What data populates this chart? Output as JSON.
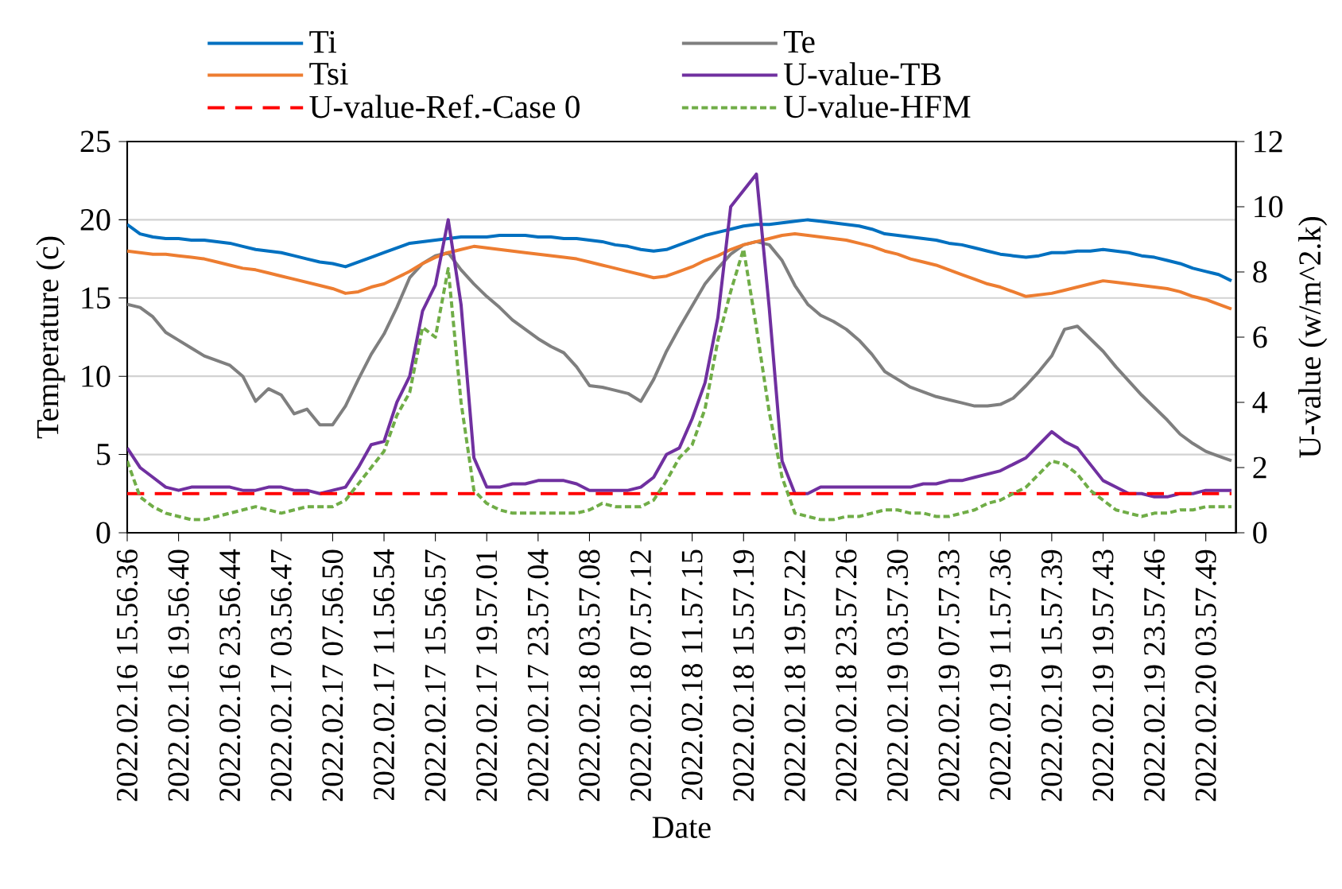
{
  "chart_data": {
    "type": "line",
    "xlabel": "Date",
    "ylabel": "Temperature (c)",
    "y2label": "U-value (w/m^2.k)",
    "ylim": [
      0,
      25
    ],
    "y2lim": [
      0,
      12
    ],
    "categories": [
      "2022.02.16 15.56.36",
      null,
      null,
      null,
      "2022.02.16 19.56.40",
      null,
      null,
      null,
      "2022.02.16 23.56.44",
      null,
      null,
      null,
      "2022.02.17 03.56.47",
      null,
      null,
      null,
      "2022.02.17 07.56.50",
      null,
      null,
      null,
      "2022.02.17 11.56.54",
      null,
      null,
      null,
      "2022.02.17 15.56.57",
      null,
      null,
      null,
      "2022.02.17 19.57.01",
      null,
      null,
      null,
      "2022.02.17 23.57.04",
      null,
      null,
      null,
      "2022.02.18 03.57.08",
      null,
      null,
      null,
      "2022.02.18 07.57.12",
      null,
      null,
      null,
      "2022.02.18 11.57.15",
      null,
      null,
      null,
      "2022.02.18 15.57.19",
      null,
      null,
      null,
      "2022.02.18 19.57.22",
      null,
      null,
      null,
      "2022.02.18 23.57.26",
      null,
      null,
      null,
      "2022.02.19 03.57.30",
      null,
      null,
      null,
      "2022.02.19 07.57.33",
      null,
      null,
      null,
      "2022.02.19 11.57.36",
      null,
      null,
      null,
      "2022.02.19 15.57.39",
      null,
      null,
      null,
      "2022.02.19 19.57.43",
      null,
      null,
      null,
      "2022.02.19 23.57.46",
      null,
      null,
      null,
      "2022.02.20 03.57.49",
      null,
      null
    ],
    "yticks": [
      0,
      5,
      10,
      15,
      20,
      25
    ],
    "y2ticks": [
      0,
      2,
      4,
      6,
      8,
      10,
      12
    ],
    "grid": "y",
    "legend": "top",
    "series": [
      {
        "name": "Ti",
        "color": "#0070c0",
        "line_style": "solid",
        "values": [
          19.7,
          19.1,
          18.9,
          18.8,
          18.8,
          18.7,
          18.7,
          18.6,
          18.5,
          18.3,
          18.1,
          18.0,
          17.9,
          17.7,
          17.5,
          17.3,
          17.2,
          17.0,
          17.3,
          17.6,
          17.9,
          18.2,
          18.5,
          18.6,
          18.7,
          18.8,
          18.9,
          18.9,
          18.9,
          19.0,
          19.0,
          19.0,
          18.9,
          18.9,
          18.8,
          18.8,
          18.7,
          18.6,
          18.4,
          18.3,
          18.1,
          18.0,
          18.1,
          18.4,
          18.7,
          19.0,
          19.2,
          19.4,
          19.6,
          19.7,
          19.7,
          19.8,
          19.9,
          20.0,
          19.9,
          19.8,
          19.7,
          19.6,
          19.4,
          19.1,
          19.0,
          18.9,
          18.8,
          18.7,
          18.5,
          18.4,
          18.2,
          18.0,
          17.8,
          17.7,
          17.6,
          17.7,
          17.9,
          17.9,
          18.0,
          18.0,
          18.1,
          18.0,
          17.9,
          17.7,
          17.6,
          17.4,
          17.2,
          16.9,
          16.7,
          16.5,
          16.1
        ]
      },
      {
        "name": "Te",
        "color": "#7f7f7f",
        "line_style": "solid",
        "values": [
          14.6,
          14.4,
          13.8,
          12.8,
          12.3,
          11.8,
          11.3,
          11.0,
          10.7,
          10.0,
          8.4,
          9.2,
          8.8,
          7.6,
          7.9,
          6.9,
          6.9,
          8.1,
          9.8,
          11.4,
          12.7,
          14.4,
          16.3,
          17.2,
          17.7,
          17.9,
          16.8,
          15.9,
          15.1,
          14.4,
          13.6,
          13.0,
          12.4,
          11.9,
          11.5,
          10.6,
          9.4,
          9.3,
          9.1,
          8.9,
          8.4,
          9.8,
          11.6,
          13.1,
          14.5,
          15.9,
          16.9,
          17.8,
          18.4,
          18.6,
          18.4,
          17.4,
          15.8,
          14.6,
          13.9,
          13.5,
          13.0,
          12.3,
          11.4,
          10.3,
          9.8,
          9.3,
          9.0,
          8.7,
          8.5,
          8.3,
          8.1,
          8.1,
          8.2,
          8.6,
          9.4,
          10.3,
          11.3,
          13.0,
          13.2,
          12.4,
          11.6,
          10.6,
          9.7,
          8.8,
          8.0,
          7.2,
          6.3,
          5.7,
          5.2,
          4.9,
          4.6
        ]
      },
      {
        "name": "Tsi",
        "color": "#ed7d31",
        "line_style": "solid",
        "values": [
          18.0,
          17.9,
          17.8,
          17.8,
          17.7,
          17.6,
          17.5,
          17.3,
          17.1,
          16.9,
          16.8,
          16.6,
          16.4,
          16.2,
          16.0,
          15.8,
          15.6,
          15.3,
          15.4,
          15.7,
          15.9,
          16.3,
          16.7,
          17.2,
          17.6,
          17.9,
          18.1,
          18.3,
          18.2,
          18.1,
          18.0,
          17.9,
          17.8,
          17.7,
          17.6,
          17.5,
          17.3,
          17.1,
          16.9,
          16.7,
          16.5,
          16.3,
          16.4,
          16.7,
          17.0,
          17.4,
          17.7,
          18.1,
          18.4,
          18.6,
          18.8,
          19.0,
          19.1,
          19.0,
          18.9,
          18.8,
          18.7,
          18.5,
          18.3,
          18.0,
          17.8,
          17.5,
          17.3,
          17.1,
          16.8,
          16.5,
          16.2,
          15.9,
          15.7,
          15.4,
          15.1,
          15.2,
          15.3,
          15.5,
          15.7,
          15.9,
          16.1,
          16.0,
          15.9,
          15.8,
          15.7,
          15.6,
          15.4,
          15.1,
          14.9,
          14.6,
          14.3
        ]
      },
      {
        "name": "U-value-TB",
        "color": "#7030a0",
        "line_style": "solid",
        "axis": "y2",
        "values": [
          2.6,
          2.0,
          1.7,
          1.4,
          1.3,
          1.4,
          1.4,
          1.4,
          1.4,
          1.3,
          1.3,
          1.4,
          1.4,
          1.3,
          1.3,
          1.2,
          1.3,
          1.4,
          2.0,
          2.7,
          2.8,
          4.0,
          4.8,
          6.8,
          7.6,
          9.6,
          7.0,
          2.3,
          1.4,
          1.4,
          1.5,
          1.5,
          1.6,
          1.6,
          1.6,
          1.5,
          1.3,
          1.3,
          1.3,
          1.3,
          1.4,
          1.7,
          2.4,
          2.6,
          3.5,
          4.6,
          6.6,
          10.0,
          10.5,
          11.0,
          6.9,
          2.2,
          1.2,
          1.2,
          1.4,
          1.4,
          1.4,
          1.4,
          1.4,
          1.4,
          1.4,
          1.4,
          1.5,
          1.5,
          1.6,
          1.6,
          1.7,
          1.8,
          1.9,
          2.1,
          2.3,
          2.7,
          3.1,
          2.8,
          2.6,
          2.1,
          1.6,
          1.4,
          1.2,
          1.2,
          1.1,
          1.1,
          1.2,
          1.2,
          1.3,
          1.3,
          1.3
        ]
      },
      {
        "name": "U-value-Ref.-Case 0",
        "color": "#ff0000",
        "line_style": "dashed",
        "axis": "y2",
        "values": [
          1.2,
          1.2,
          1.2,
          1.2,
          1.2,
          1.2,
          1.2,
          1.2,
          1.2,
          1.2,
          1.2,
          1.2,
          1.2,
          1.2,
          1.2,
          1.2,
          1.2,
          1.2,
          1.2,
          1.2,
          1.2,
          1.2,
          1.2,
          1.2,
          1.2,
          1.2,
          1.2,
          1.2,
          1.2,
          1.2,
          1.2,
          1.2,
          1.2,
          1.2,
          1.2,
          1.2,
          1.2,
          1.2,
          1.2,
          1.2,
          1.2,
          1.2,
          1.2,
          1.2,
          1.2,
          1.2,
          1.2,
          1.2,
          1.2,
          1.2,
          1.2,
          1.2,
          1.2,
          1.2,
          1.2,
          1.2,
          1.2,
          1.2,
          1.2,
          1.2,
          1.2,
          1.2,
          1.2,
          1.2,
          1.2,
          1.2,
          1.2,
          1.2,
          1.2,
          1.2,
          1.2,
          1.2,
          1.2,
          1.2,
          1.2,
          1.2,
          1.2,
          1.2,
          1.2,
          1.2,
          1.2,
          1.2,
          1.2,
          1.2,
          1.2,
          1.2,
          1.2
        ]
      },
      {
        "name": "U-value-HFM",
        "color": "#70ad47",
        "line_style": "dotted",
        "axis": "y2",
        "values": [
          2.2,
          1.1,
          0.8,
          0.6,
          0.5,
          0.4,
          0.4,
          0.5,
          0.6,
          0.7,
          0.8,
          0.7,
          0.6,
          0.7,
          0.8,
          0.8,
          0.8,
          1.0,
          1.5,
          2.0,
          2.5,
          3.6,
          4.3,
          6.3,
          6.0,
          8.1,
          4.0,
          1.3,
          0.9,
          0.7,
          0.6,
          0.6,
          0.6,
          0.6,
          0.6,
          0.6,
          0.7,
          0.9,
          0.8,
          0.8,
          0.8,
          1.0,
          1.6,
          2.3,
          2.7,
          3.8,
          5.9,
          7.4,
          8.7,
          6.3,
          3.7,
          1.7,
          0.6,
          0.5,
          0.4,
          0.4,
          0.5,
          0.5,
          0.6,
          0.7,
          0.7,
          0.6,
          0.6,
          0.5,
          0.5,
          0.6,
          0.7,
          0.9,
          1.0,
          1.2,
          1.4,
          1.8,
          2.2,
          2.1,
          1.8,
          1.3,
          1.0,
          0.7,
          0.6,
          0.5,
          0.6,
          0.6,
          0.7,
          0.7,
          0.8,
          0.8,
          0.8
        ]
      }
    ]
  }
}
